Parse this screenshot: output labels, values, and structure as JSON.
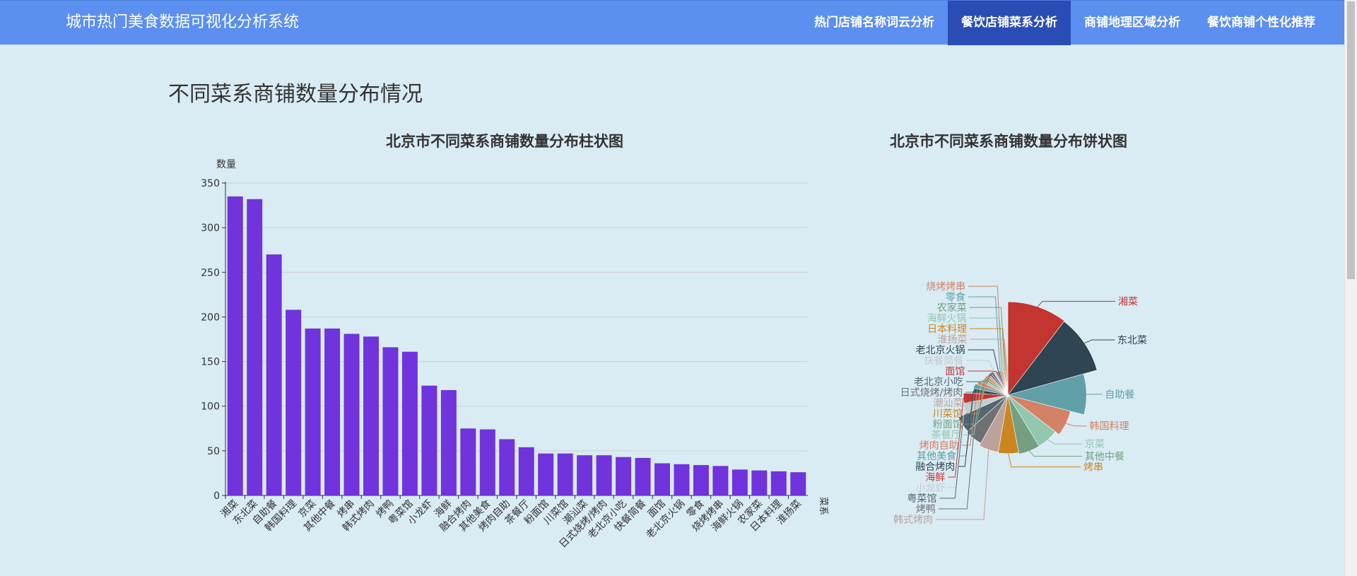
{
  "app_title": "城市热门美食数据可视化分析系统",
  "nav": [
    {
      "label": "热门店铺名称词云分析",
      "active": false
    },
    {
      "label": "餐饮店铺菜系分析",
      "active": true
    },
    {
      "label": "商铺地理区域分析",
      "active": false
    },
    {
      "label": "餐饮商铺个性化推荐",
      "active": false
    }
  ],
  "section_title": "不同菜系商铺数量分布情况",
  "colors": {
    "bar": "#7033dc",
    "nav": "#5b8ff0",
    "nav_active": "#2a4db5",
    "background": "#d9ebf3"
  },
  "chart_data": [
    {
      "type": "bar",
      "title": "北京市不同菜系商铺数量分布柱状图",
      "ylabel": "数量",
      "xlabel": "菜系",
      "ylim": [
        0,
        350
      ],
      "yticks": [
        0,
        50,
        100,
        150,
        200,
        250,
        300,
        350
      ],
      "grid": true,
      "categories": [
        "湘菜",
        "东北菜",
        "自助餐",
        "韩国料理",
        "京菜",
        "其他中餐",
        "烤串",
        "韩式烤肉",
        "烤鸭",
        "粤菜馆",
        "小龙虾",
        "海鲜",
        "融合烤肉",
        "其他美食",
        "烤肉自助",
        "茶餐厅",
        "粉面馆",
        "川菜馆",
        "潮汕菜",
        "日式烧烤/烤肉",
        "老北京小吃",
        "快餐简餐",
        "面馆",
        "老北京火锅",
        "零食",
        "烧烤烤串",
        "海鲜火锅",
        "农家菜",
        "日本料理",
        "淮扬菜"
      ],
      "values": [
        335,
        332,
        270,
        208,
        187,
        187,
        181,
        178,
        166,
        161,
        123,
        118,
        75,
        74,
        63,
        54,
        47,
        47,
        45,
        45,
        43,
        42,
        36,
        35,
        34,
        33,
        29,
        28,
        27,
        26
      ]
    },
    {
      "type": "pie",
      "title": "北京市不同菜系商铺数量分布饼状图",
      "categories": [
        "湘菜",
        "东北菜",
        "自助餐",
        "韩国料理",
        "京菜",
        "其他中餐",
        "烤串",
        "韩式烤肉",
        "烤鸭",
        "粤菜馆",
        "小龙虾",
        "海鲜",
        "融合烤肉",
        "其他美食",
        "烤肉自助",
        "茶餐厅",
        "粉面馆",
        "川菜馆",
        "潮汕菜",
        "日式烧烤/烤肉",
        "老北京小吃",
        "快餐简餐",
        "面馆",
        "老北京火锅",
        "零食",
        "烧烤烤串",
        "海鲜火锅",
        "农家菜",
        "日本料理",
        "淮扬菜"
      ],
      "values": [
        335,
        332,
        270,
        208,
        187,
        187,
        181,
        178,
        166,
        161,
        123,
        118,
        75,
        74,
        63,
        54,
        47,
        47,
        45,
        45,
        43,
        42,
        36,
        35,
        34,
        33,
        29,
        28,
        27,
        26
      ],
      "palette": [
        "#c23531",
        "#2f4554",
        "#61a0a8",
        "#d48265",
        "#91c7ae",
        "#749f83",
        "#ca8622",
        "#bda29a",
        "#6e7074",
        "#546570",
        "#c4ccd3"
      ]
    }
  ]
}
